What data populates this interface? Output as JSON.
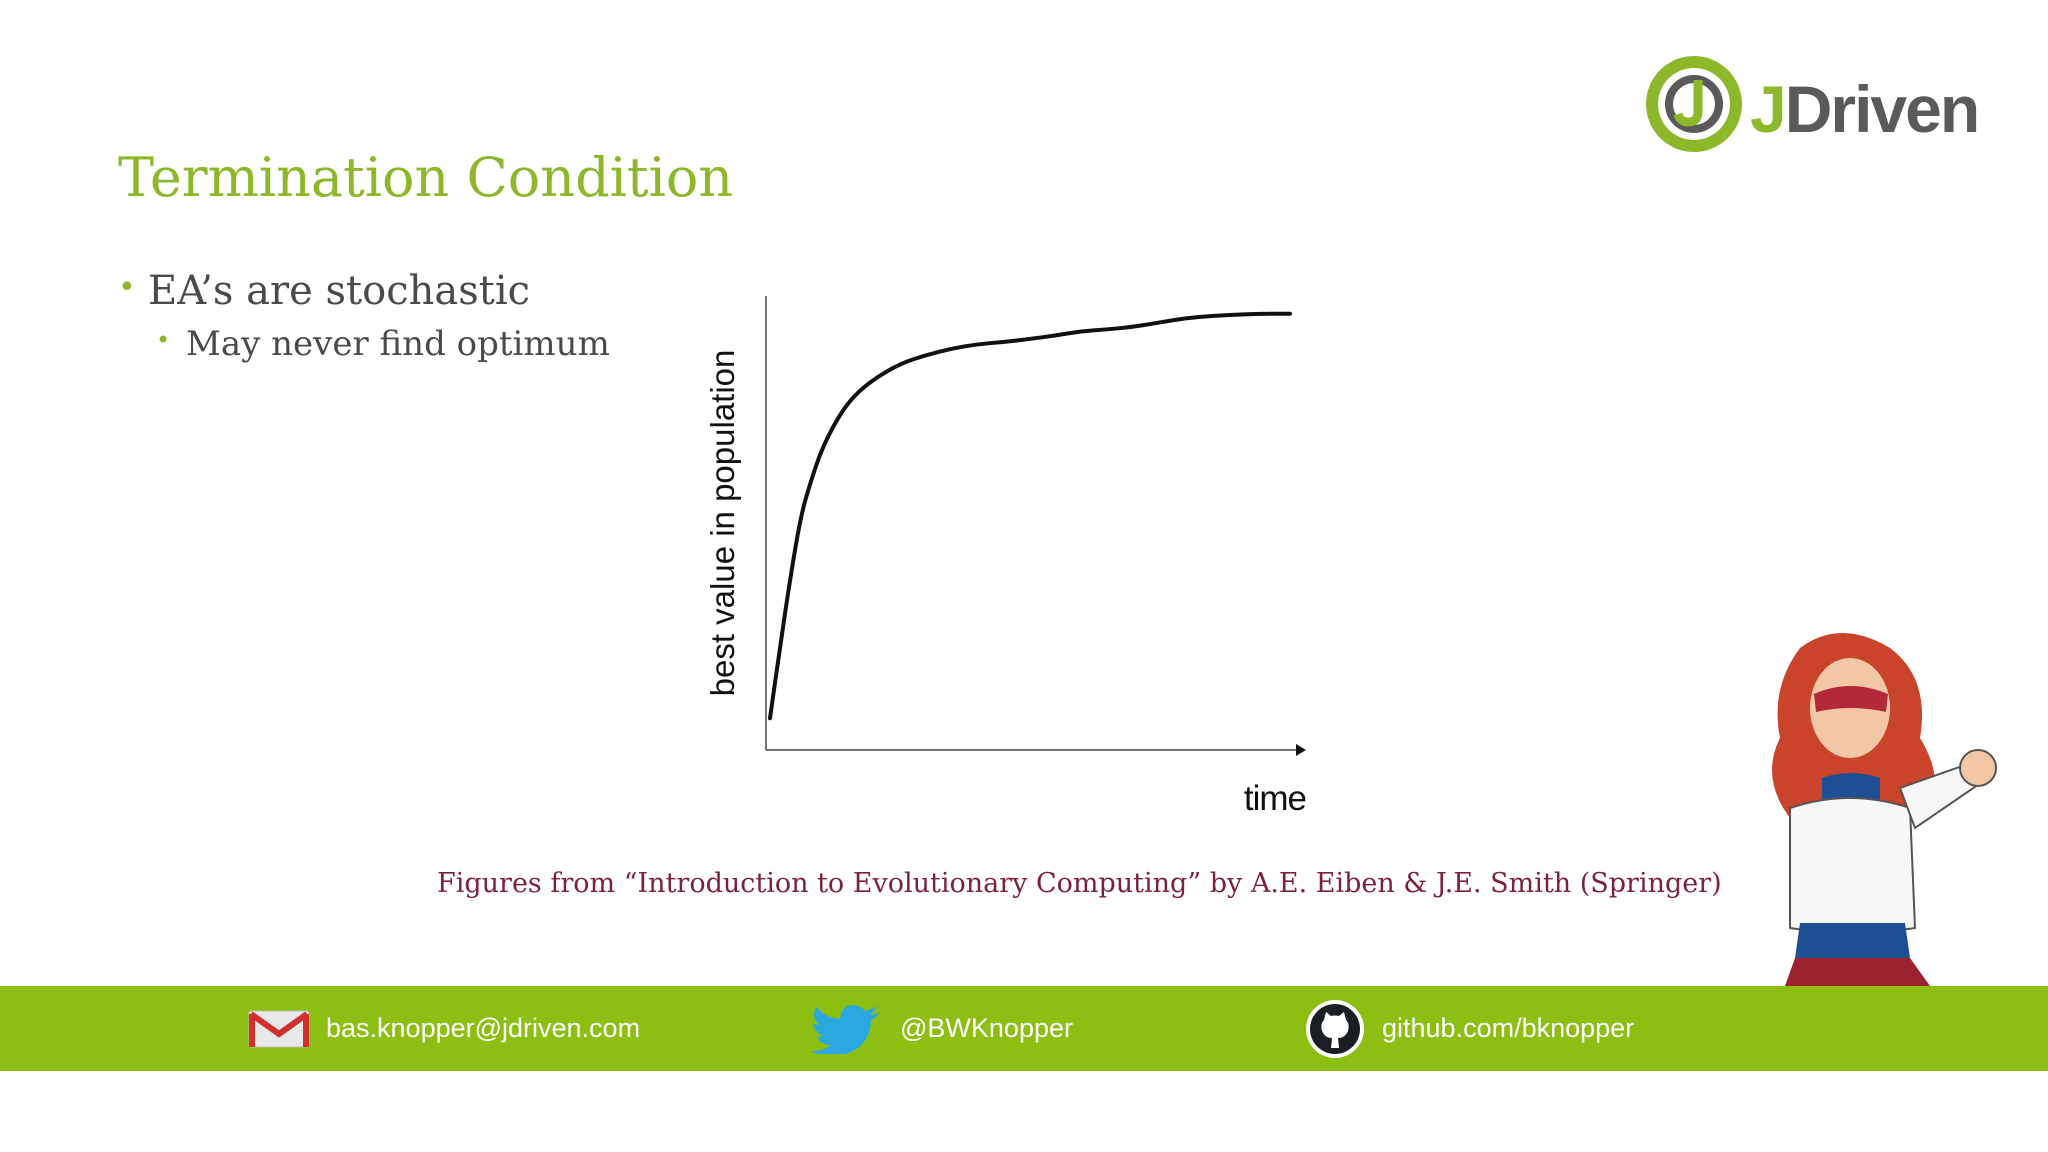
{
  "slide": {
    "title": "Termination Condition",
    "bullets": [
      {
        "text": "EA’s are stochastic",
        "sub": [
          "May never find optimum"
        ]
      }
    ],
    "caption": "Figures from “Introduction to Evolutionary Computing” by A.E. Eiben & J.E. Smith (Springer)"
  },
  "logo": {
    "text": "JDriven"
  },
  "chart_data": {
    "type": "line",
    "title": "",
    "xlabel": "time",
    "ylabel": "best value in population",
    "x_ticks": false,
    "y_ticks": false,
    "grid": false,
    "series": [
      {
        "x": [
          0,
          0.02,
          0.04,
          0.06,
          0.08,
          0.1,
          0.13,
          0.16,
          0.2,
          0.25,
          0.3,
          0.35,
          0.4,
          0.45,
          0.5,
          0.55,
          0.6,
          0.65,
          0.7,
          0.75,
          0.8,
          0.85,
          0.9,
          0.95,
          1.0
        ],
        "y": [
          0.05,
          0.22,
          0.38,
          0.52,
          0.6,
          0.67,
          0.74,
          0.79,
          0.83,
          0.865,
          0.885,
          0.9,
          0.91,
          0.915,
          0.922,
          0.93,
          0.94,
          0.944,
          0.95,
          0.96,
          0.97,
          0.975,
          0.978,
          0.98,
          0.98
        ]
      }
    ]
  },
  "footer": {
    "email": "bas.knopper@jdriven.com",
    "twitter": "@BWKnopper",
    "github": "github.com/bknopper"
  },
  "colors": {
    "accent": "#8cb82a",
    "footer": "#8cbf12",
    "caption": "#7d1f3f",
    "logo_gray": "#5a5a5a"
  }
}
